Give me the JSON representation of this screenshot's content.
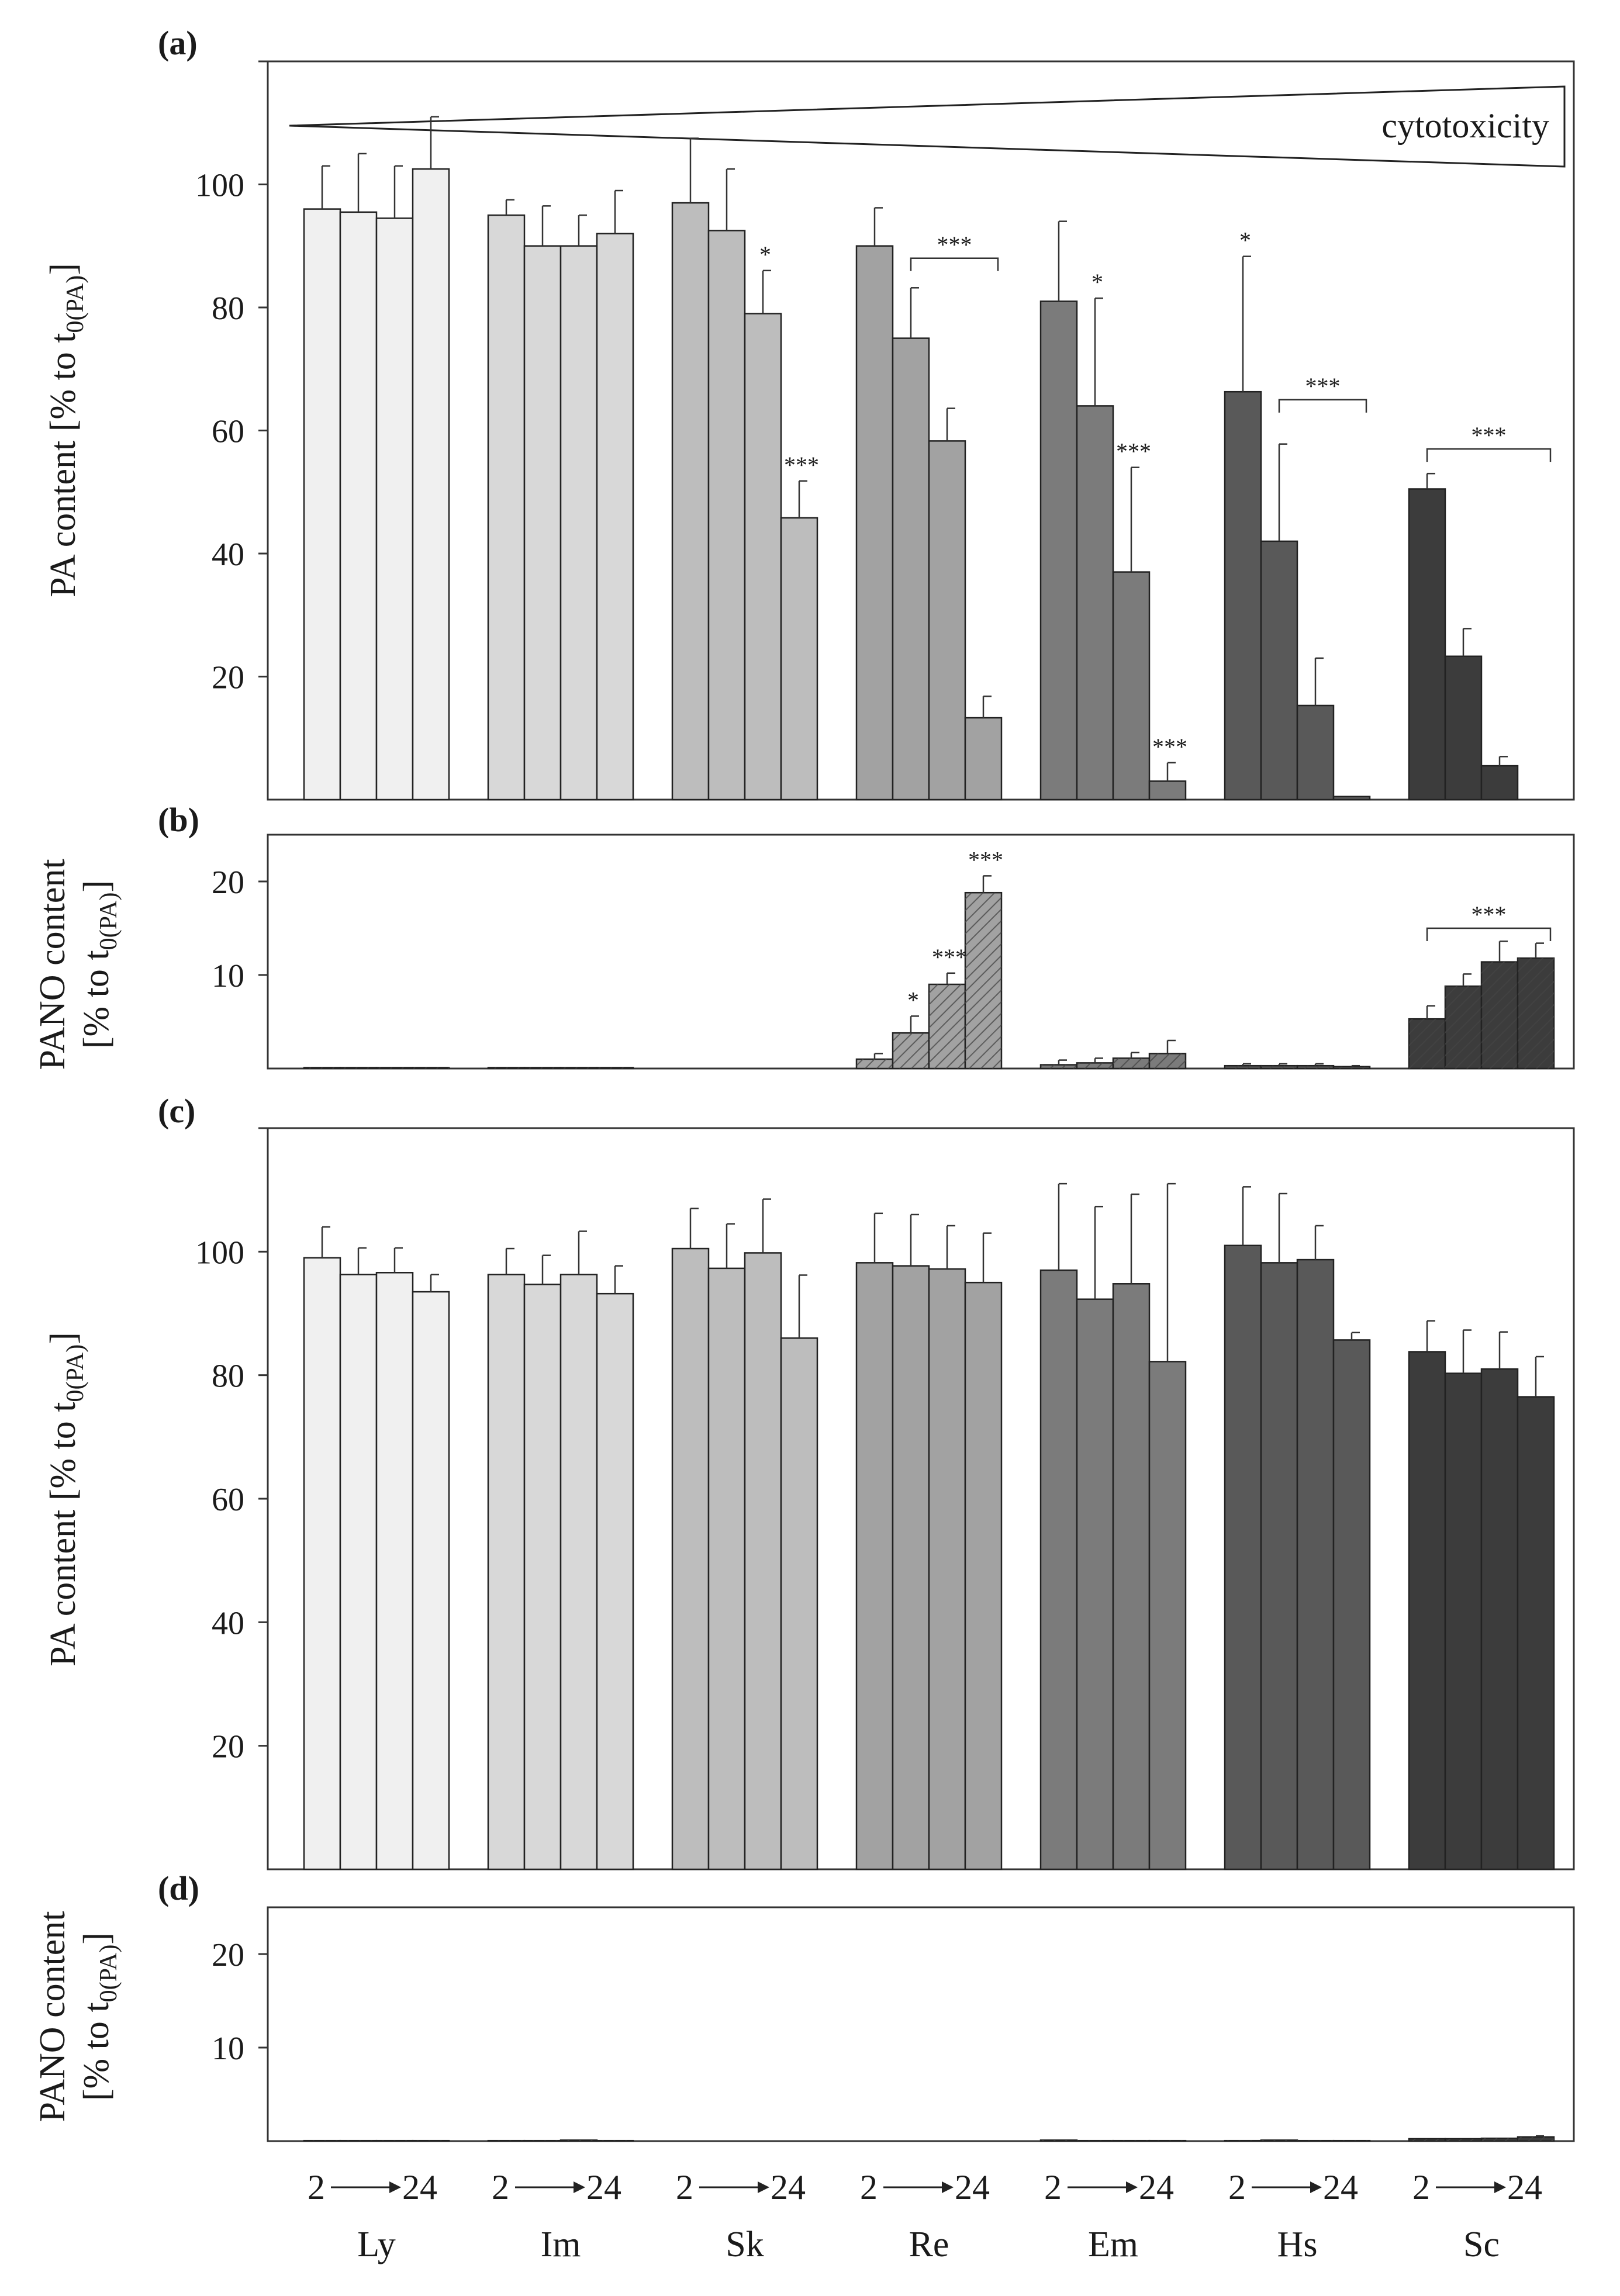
{
  "chart_data": [
    {
      "id": "a",
      "panel_label": "(a)",
      "type": "bar",
      "ylabel_main": "PA content [% to t",
      "ylabel_sub": "0(PA)",
      "ylabel_close": "]",
      "ylim": [
        0,
        120
      ],
      "yticks": [
        20,
        40,
        60,
        80,
        100
      ],
      "categories": [
        "Ly",
        "Im",
        "Sk",
        "Re",
        "Em",
        "Hs",
        "Sc"
      ],
      "time_points": 4,
      "colors": [
        "#f0f0f0",
        "#d8d8d8",
        "#bdbdbd",
        "#a2a2a2",
        "#7b7b7b",
        "#595959",
        "#3c3c3c"
      ],
      "hatched": false,
      "values": [
        [
          96,
          95.5,
          94.5,
          102.5
        ],
        [
          95,
          90,
          90,
          92
        ],
        [
          97,
          92.5,
          79,
          45.8
        ],
        [
          90,
          75,
          58.3,
          13.3
        ],
        [
          81,
          64,
          37,
          3
        ],
        [
          66.3,
          42,
          15.3,
          0.5
        ],
        [
          50.5,
          23.3,
          5.5,
          0
        ]
      ],
      "errors": [
        [
          7,
          9.5,
          8.5,
          8.5
        ],
        [
          2.5,
          6.5,
          5,
          7
        ],
        [
          10.5,
          10,
          7,
          6
        ],
        [
          6.2,
          8.2,
          5.3,
          3.5
        ],
        [
          13,
          17.5,
          17,
          3
        ],
        [
          22,
          15.8,
          7.7,
          0
        ],
        [
          2.5,
          4.5,
          1.5,
          0
        ]
      ],
      "annotations": [
        {
          "text": "*",
          "group": 2,
          "bar": 2
        },
        {
          "text": "***",
          "group": 2,
          "bar": 3
        },
        {
          "text": "*",
          "group": 4,
          "bar": 1
        },
        {
          "text": "***",
          "group": 4,
          "bar": 2
        },
        {
          "text": "***",
          "group": 4,
          "bar": 3
        },
        {
          "text": "*",
          "group": 5,
          "bar": 0
        }
      ],
      "brackets": [
        {
          "text": "***",
          "group": 3,
          "from_bar": 1,
          "to_bar": 3,
          "level": 88
        },
        {
          "text": "***",
          "group": 5,
          "from_bar": 1,
          "to_bar": 3,
          "level": 65
        },
        {
          "text": "***",
          "group": 6,
          "from_bar": 0,
          "to_bar": 3,
          "level": 57
        }
      ],
      "wedge_label": "cytotoxicity"
    },
    {
      "id": "b",
      "panel_label": "(b)",
      "type": "bar",
      "ylabel_line1": "PANO content",
      "ylabel_main": "[% to t",
      "ylabel_sub": "0(PA)",
      "ylabel_close": "]",
      "ylim": [
        0,
        25
      ],
      "yticks": [
        10,
        20
      ],
      "categories": [
        "Ly",
        "Im",
        "Sk",
        "Re",
        "Em",
        "Hs",
        "Sc"
      ],
      "time_points": 4,
      "colors": [
        "#f0f0f0",
        "#d8d8d8",
        "#bdbdbd",
        "#a2a2a2",
        "#7b7b7b",
        "#595959",
        "#3c3c3c"
      ],
      "hatched": true,
      "values": [
        [
          0.1,
          0.1,
          0.1,
          0.1
        ],
        [
          0.1,
          0.1,
          0.1,
          0.1
        ],
        [
          0,
          0,
          0,
          0
        ],
        [
          1,
          3.8,
          9,
          18.8
        ],
        [
          0.4,
          0.6,
          1.1,
          1.6
        ],
        [
          0.3,
          0.3,
          0.3,
          0.2
        ],
        [
          5.3,
          8.8,
          11.4,
          11.8
        ]
      ],
      "errors": [
        [
          0,
          0,
          0,
          0
        ],
        [
          0,
          0,
          0,
          0
        ],
        [
          0,
          0,
          0,
          0
        ],
        [
          0.6,
          1.8,
          1.2,
          1.8
        ],
        [
          0.5,
          0.5,
          0.6,
          1.4
        ],
        [
          0.2,
          0.2,
          0.2,
          0.1
        ],
        [
          1.4,
          1.3,
          2.2,
          1.6
        ]
      ],
      "annotations": [
        {
          "text": "*",
          "group": 3,
          "bar": 1
        },
        {
          "text": "***",
          "group": 3,
          "bar": 2
        },
        {
          "text": "***",
          "group": 3,
          "bar": 3
        }
      ],
      "brackets": [
        {
          "text": "***",
          "group": 6,
          "from_bar": 0,
          "to_bar": 3,
          "level": 15
        }
      ]
    },
    {
      "id": "c",
      "panel_label": "(c)",
      "type": "bar",
      "ylabel_main": "PA content [% to t",
      "ylabel_sub": "0(PA)",
      "ylabel_close": "]",
      "ylim": [
        0,
        120
      ],
      "yticks": [
        20,
        40,
        60,
        80,
        100
      ],
      "categories": [
        "Ly",
        "Im",
        "Sk",
        "Re",
        "Em",
        "Hs",
        "Sc"
      ],
      "time_points": 4,
      "colors": [
        "#f0f0f0",
        "#d8d8d8",
        "#bdbdbd",
        "#a2a2a2",
        "#7b7b7b",
        "#595959",
        "#3c3c3c"
      ],
      "hatched": false,
      "values": [
        [
          99,
          96.3,
          96.6,
          93.5
        ],
        [
          96.3,
          94.7,
          96.3,
          93.2
        ],
        [
          100.5,
          97.3,
          99.8,
          86
        ],
        [
          98.2,
          97.7,
          97.2,
          95
        ],
        [
          97,
          92.3,
          94.8,
          82.2
        ],
        [
          101,
          98.2,
          98.7,
          85.7
        ],
        [
          83.8,
          80.3,
          81,
          76.5
        ]
      ],
      "errors": [
        [
          5,
          4.3,
          4,
          2.8
        ],
        [
          4.2,
          4.7,
          7,
          4.5
        ],
        [
          6.5,
          7.2,
          8.7,
          10.2
        ],
        [
          8,
          8.3,
          7,
          8
        ],
        [
          14,
          15,
          14.5,
          28.8
        ],
        [
          9.5,
          11.2,
          5.5,
          1.2
        ],
        [
          5,
          7,
          6,
          6.5
        ]
      ],
      "annotations": [],
      "brackets": []
    },
    {
      "id": "d",
      "panel_label": "(d)",
      "type": "bar",
      "ylabel_line1": "PANO content",
      "ylabel_main": "[% to t",
      "ylabel_sub": "0(PA)",
      "ylabel_close": "]",
      "ylim": [
        0,
        25
      ],
      "yticks": [
        10,
        20
      ],
      "categories": [
        "Ly",
        "Im",
        "Sk",
        "Re",
        "Em",
        "Hs",
        "Sc"
      ],
      "time_points": 4,
      "colors": [
        "#f0f0f0",
        "#d8d8d8",
        "#bdbdbd",
        "#a2a2a2",
        "#7b7b7b",
        "#595959",
        "#3c3c3c"
      ],
      "hatched": true,
      "values": [
        [
          0.05,
          0.05,
          0.05,
          0.05
        ],
        [
          0.05,
          0.05,
          0.1,
          0.05
        ],
        [
          0,
          0,
          0,
          0
        ],
        [
          0,
          0,
          0,
          0
        ],
        [
          0.1,
          0.05,
          0.05,
          0.05
        ],
        [
          0.05,
          0.1,
          0.05,
          0.05
        ],
        [
          0.25,
          0.25,
          0.3,
          0.45
        ]
      ],
      "errors": [
        [
          0,
          0,
          0,
          0
        ],
        [
          0,
          0,
          0,
          0
        ],
        [
          0,
          0,
          0,
          0
        ],
        [
          0,
          0,
          0,
          0
        ],
        [
          0,
          0,
          0,
          0
        ],
        [
          0,
          0,
          0,
          0
        ],
        [
          0,
          0,
          0,
          0.1
        ]
      ],
      "annotations": [],
      "brackets": [],
      "x_time_labels": {
        "start": "2",
        "end": "24"
      }
    }
  ]
}
